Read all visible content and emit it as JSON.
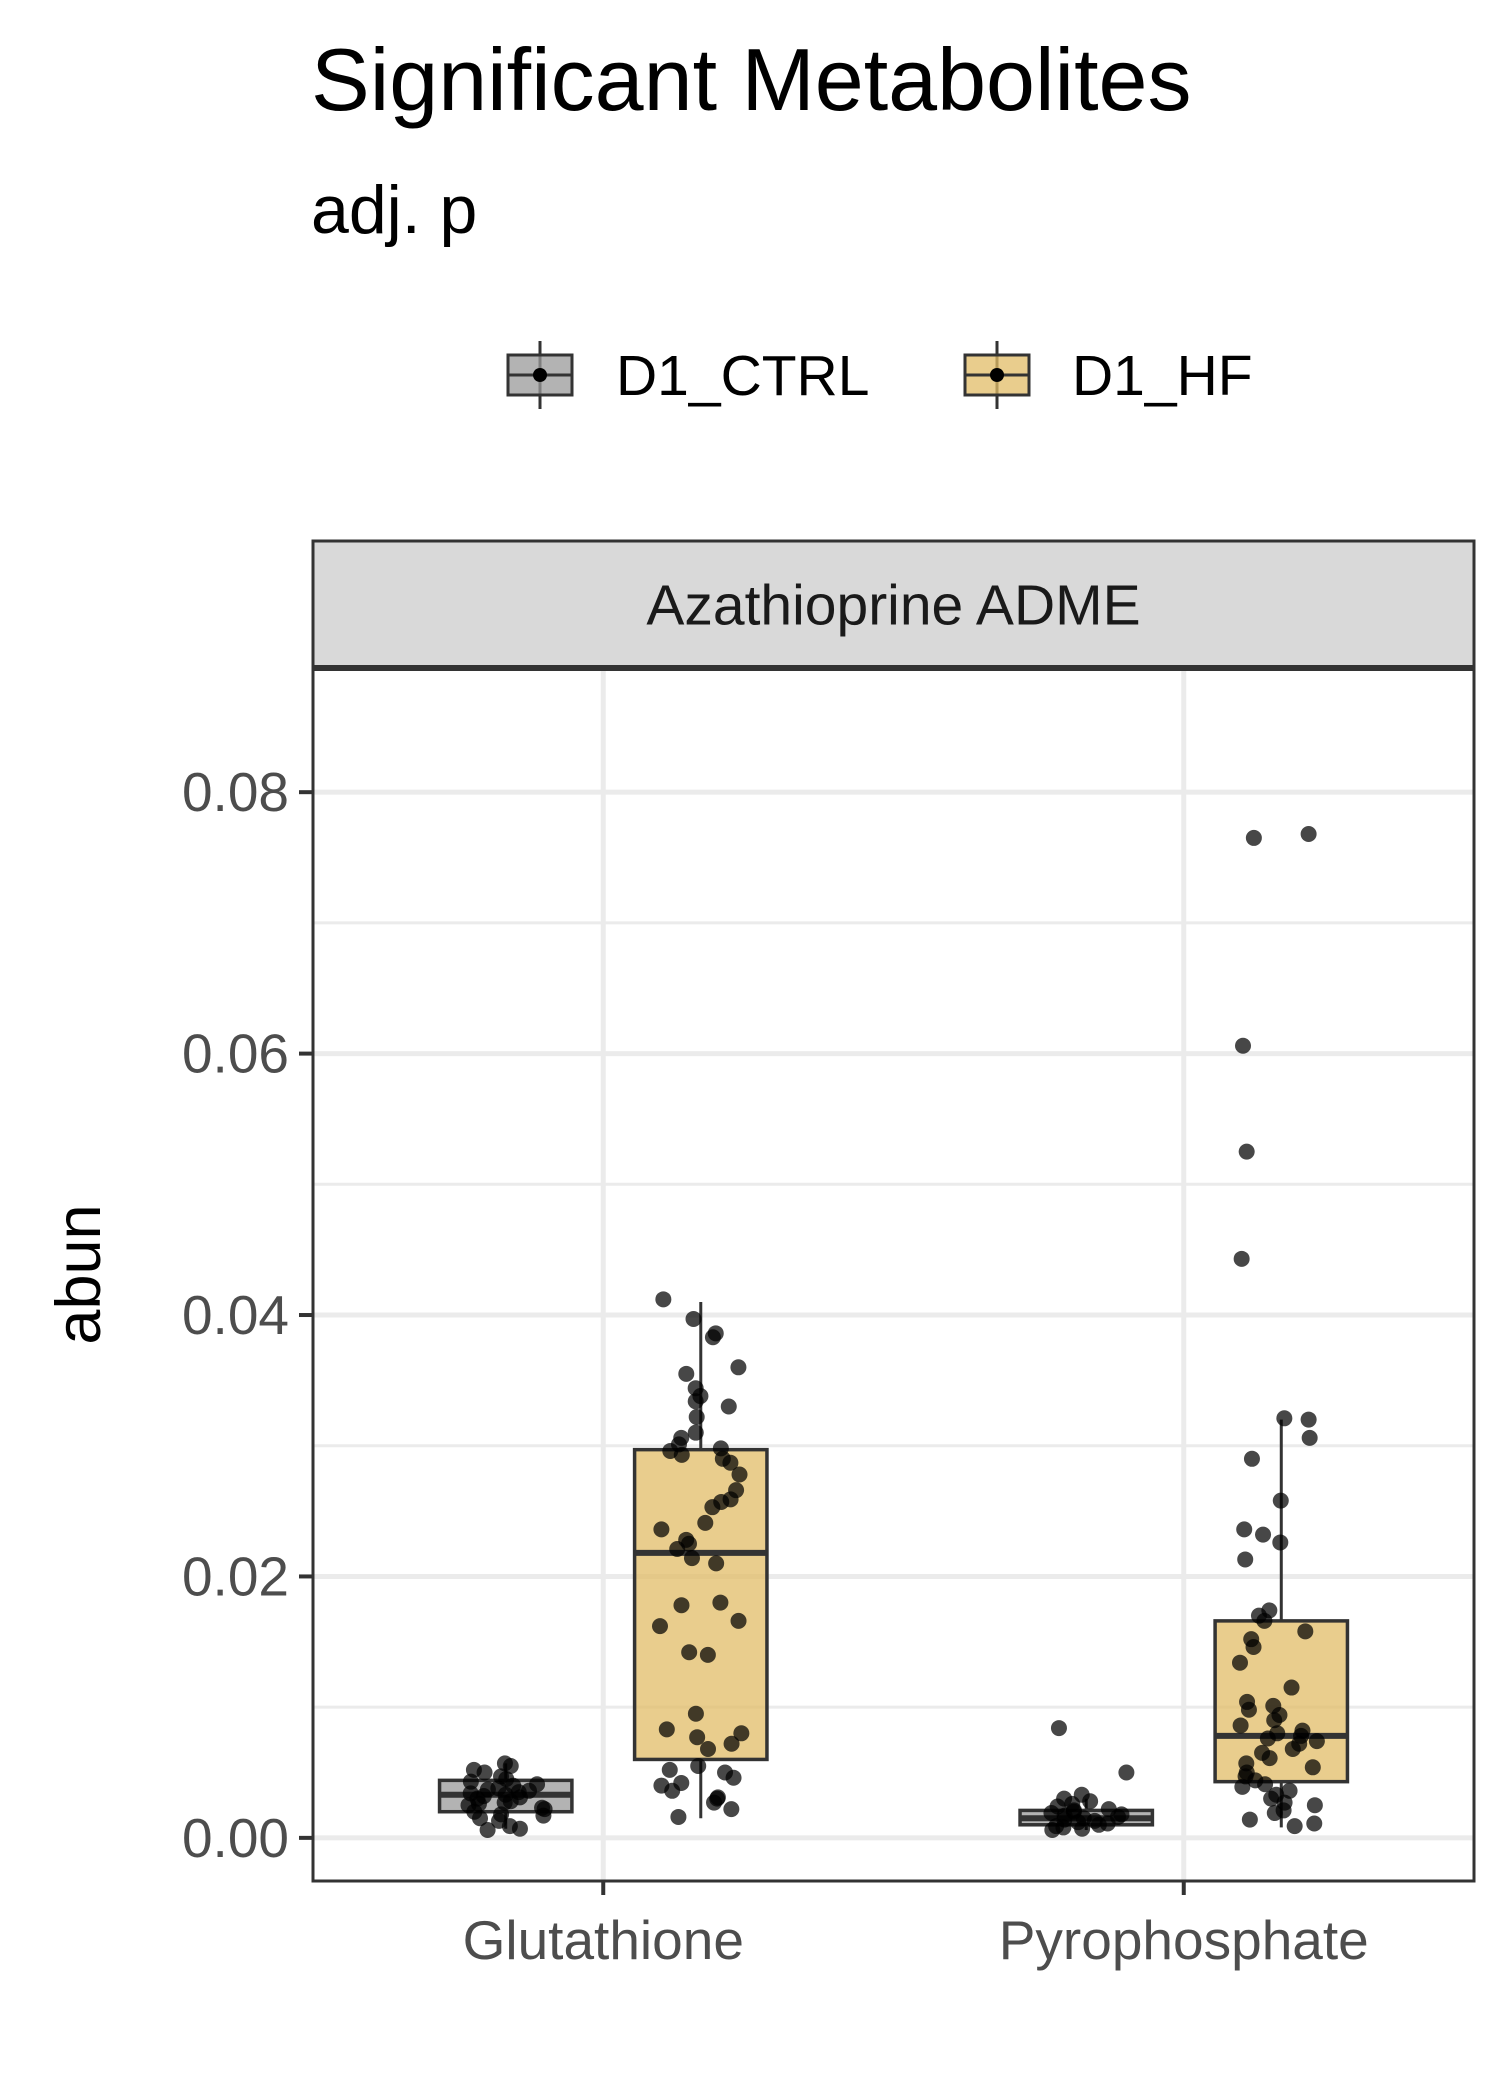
{
  "chart_data": {
    "type": "box",
    "title": "Significant Metabolites",
    "subtitle": "adj. p",
    "facet": "Azathioprine ADME",
    "ylabel": "abun",
    "xlabel": "",
    "ylim": [
      -0.0033,
      0.0895
    ],
    "yticks": [
      0.0,
      0.02,
      0.04,
      0.06,
      0.08
    ],
    "ytick_labels": [
      "0.00",
      "0.02",
      "0.04",
      "0.06",
      "0.08"
    ],
    "categories": [
      "Glutathione",
      "Pyrophosphate"
    ],
    "legend": {
      "position": "top",
      "entries": [
        "D1_CTRL",
        "D1_HF"
      ]
    },
    "grid": true,
    "series": [
      {
        "name": "D1_CTRL",
        "color": "#999999",
        "boxes": [
          {
            "category": "Glutathione",
            "q1": 0.002,
            "median": 0.0033,
            "q3": 0.0044,
            "whisker_low": 0.0007,
            "whisker_high": 0.0057,
            "points": [
              0.0057,
              0.0055,
              0.0052,
              0.005,
              0.0047,
              0.0045,
              0.0043,
              0.0041,
              0.004,
              0.0038,
              0.0037,
              0.0036,
              0.0035,
              0.0034,
              0.0033,
              0.0032,
              0.0031,
              0.003,
              0.0028,
              0.0027,
              0.0026,
              0.0025,
              0.0023,
              0.0022,
              0.002,
              0.0018,
              0.0017,
              0.0015,
              0.0013,
              0.0009,
              0.0007,
              0.0006
            ]
          },
          {
            "category": "Pyrophosphate",
            "q1": 0.001,
            "median": 0.0015,
            "q3": 0.0021,
            "whisker_low": 0.0006,
            "whisker_high": 0.003,
            "points": [
              0.0084,
              0.005,
              0.0033,
              0.003,
              0.0028,
              0.0026,
              0.0024,
              0.0022,
              0.0021,
              0.002,
              0.0019,
              0.0018,
              0.0017,
              0.0016,
              0.0015,
              0.0014,
              0.0013,
              0.0012,
              0.0011,
              0.001,
              0.0009,
              0.0008,
              0.0007,
              0.0006
            ]
          }
        ]
      },
      {
        "name": "D1_HF",
        "color": "#E1BC67",
        "boxes": [
          {
            "category": "Glutathione",
            "q1": 0.006,
            "median": 0.0218,
            "q3": 0.0297,
            "whisker_low": 0.0015,
            "whisker_high": 0.041,
            "points": [
              0.0412,
              0.0397,
              0.0386,
              0.0383,
              0.036,
              0.0355,
              0.0344,
              0.0338,
              0.0334,
              0.033,
              0.0322,
              0.031,
              0.0306,
              0.0301,
              0.0298,
              0.0296,
              0.0293,
              0.029,
              0.0287,
              0.0278,
              0.0266,
              0.0259,
              0.0257,
              0.0253,
              0.0241,
              0.0236,
              0.0228,
              0.0225,
              0.0221,
              0.0214,
              0.021,
              0.018,
              0.0178,
              0.0166,
              0.0162,
              0.0142,
              0.014,
              0.0095,
              0.0083,
              0.008,
              0.0077,
              0.0072,
              0.0068,
              0.0055,
              0.0052,
              0.005,
              0.0046,
              0.0042,
              0.004,
              0.0036,
              0.0031,
              0.003,
              0.0027,
              0.0022,
              0.0016
            ]
          },
          {
            "category": "Pyrophosphate",
            "q1": 0.0043,
            "median": 0.0078,
            "q3": 0.0166,
            "whisker_low": 0.0008,
            "whisker_high": 0.032,
            "points": [
              0.0768,
              0.0765,
              0.0606,
              0.0525,
              0.0443,
              0.0321,
              0.032,
              0.0306,
              0.029,
              0.0258,
              0.0236,
              0.0232,
              0.0226,
              0.0213,
              0.0174,
              0.017,
              0.0166,
              0.0158,
              0.0152,
              0.0146,
              0.0134,
              0.0115,
              0.0104,
              0.0101,
              0.0098,
              0.0094,
              0.009,
              0.0086,
              0.0082,
              0.008,
              0.0078,
              0.0076,
              0.0074,
              0.0072,
              0.0068,
              0.0065,
              0.0061,
              0.0057,
              0.0054,
              0.005,
              0.0047,
              0.0044,
              0.0041,
              0.0039,
              0.0036,
              0.0033,
              0.003,
              0.0027,
              0.0025,
              0.0021,
              0.0019,
              0.0014,
              0.0011,
              0.0009
            ]
          }
        ]
      }
    ]
  }
}
